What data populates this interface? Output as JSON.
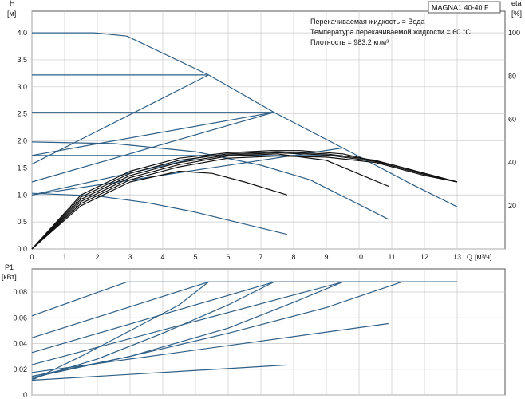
{
  "chart_data": [
    {
      "type": "line",
      "title": "MAGNA1 40-40 F",
      "annotations": [
        "Перекачиваемая жидкость = Вода",
        "Температура перекачиваемой жидкости = 60 °C",
        "Плотность = 983.2 кг/м³"
      ],
      "y_axis_title": "H",
      "y_axis_unit": "[м]",
      "y2_axis_title": "eta",
      "y2_axis_unit": "[%]",
      "x_axis_title": "Q",
      "x_axis_unit": "[м³/ч]",
      "xlim": [
        0,
        13
      ],
      "ylim": [
        0,
        4.4
      ],
      "y2lim": [
        0,
        110
      ],
      "x_ticks": [
        "0",
        "1",
        "2",
        "3",
        "4",
        "5",
        "6",
        "7",
        "8",
        "9",
        "10",
        "11",
        "12",
        "13"
      ],
      "y_ticks": [
        "0.0",
        "0.5",
        "1.0",
        "1.5",
        "2.0",
        "2.5",
        "3.0",
        "3.5",
        "4.0"
      ],
      "y2_ticks": [
        "20",
        "40",
        "60",
        "80",
        "100"
      ],
      "grid": true,
      "head_curves": [
        {
          "x": [
            0,
            1.9,
            2.9,
            5.4,
            7.4,
            9.5,
            11.6,
            13.0
          ],
          "y": [
            4.0,
            4.0,
            3.94,
            3.22,
            2.53,
            1.87,
            1.2,
            0.78
          ]
        },
        {
          "x": [
            0,
            5.4
          ],
          "y": [
            3.22,
            3.22
          ]
        },
        {
          "x": [
            0,
            7.4
          ],
          "y": [
            2.53,
            2.53
          ]
        },
        {
          "x": [
            0,
            9.5
          ],
          "y": [
            1.73,
            1.73
          ]
        },
        {
          "x": [
            0,
            2.5,
            5.0,
            7.0,
            8.5,
            10.9
          ],
          "y": [
            1.98,
            1.95,
            1.8,
            1.55,
            1.28,
            0.55
          ]
        },
        {
          "x": [
            0,
            2.0,
            3.5,
            5.0,
            6.5,
            7.8
          ],
          "y": [
            1.03,
            0.98,
            0.86,
            0.68,
            0.46,
            0.27
          ]
        }
      ],
      "control_lines": [
        {
          "x": [
            0,
            5.4
          ],
          "y": [
            1.57,
            3.22
          ]
        },
        {
          "x": [
            0,
            7.4
          ],
          "y": [
            1.24,
            2.53
          ]
        },
        {
          "x": [
            0,
            9.5
          ],
          "y": [
            1.0,
            1.87
          ]
        },
        {
          "x": [
            0,
            7.4
          ],
          "y": [
            1.73,
            2.53
          ]
        },
        {
          "x": [
            0,
            5.4
          ],
          "y": [
            1.0,
            1.73
          ]
        }
      ],
      "efficiency_curves": [
        {
          "x": [
            0,
            1.5,
            3.0,
            4.5,
            6.0,
            7.3,
            8.2,
            9.5,
            11.0,
            13.0
          ],
          "y": [
            0,
            25,
            36,
            42,
            44.5,
            45.5,
            45.5,
            44,
            39,
            31
          ]
        },
        {
          "x": [
            0,
            1.5,
            3.0,
            4.5,
            6.0,
            7.5,
            9.0,
            10.5,
            12.0,
            13.0
          ],
          "y": [
            0,
            24,
            35,
            41,
            44,
            45,
            44,
            41,
            35,
            31
          ]
        },
        {
          "x": [
            0,
            1.5,
            3.0,
            4.5,
            6.0,
            7.5,
            9.0,
            10.9
          ],
          "y": [
            0,
            22,
            33,
            39,
            43,
            44,
            41,
            29
          ]
        },
        {
          "x": [
            0,
            1.5,
            3.0,
            4.5,
            5.5,
            6.5,
            7.8
          ],
          "y": [
            0,
            20,
            31,
            36,
            35,
            31,
            25
          ]
        },
        {
          "x": [
            0,
            1.5,
            3.0,
            4.5,
            6.0,
            7.5,
            9.0,
            10.5,
            12.0,
            13.0
          ],
          "y": [
            0,
            23,
            34,
            40,
            43.5,
            44.5,
            43.5,
            40.5,
            34.5,
            31
          ]
        },
        {
          "x": [
            0,
            1.5,
            3.0,
            4.5,
            6.0,
            7.5,
            9.0,
            10.5,
            12.0,
            13.0
          ],
          "y": [
            0,
            21,
            32,
            38,
            42,
            43,
            42.5,
            40,
            34,
            31
          ]
        }
      ]
    },
    {
      "type": "line",
      "y_axis_title": "P1",
      "y_axis_unit": "[кВт]",
      "xlim": [
        0,
        13
      ],
      "ylim": [
        0,
        0.098
      ],
      "y_ticks": [
        "0",
        "0.02",
        "0.04",
        "0.06",
        "0.08"
      ],
      "grid": true,
      "power_curves": [
        {
          "x": [
            0,
            2.9,
            13.0
          ],
          "y": [
            0.0615,
            0.0878,
            0.0878
          ]
        },
        {
          "x": [
            0,
            5.4,
            13.0
          ],
          "y": [
            0.0445,
            0.0878,
            0.0878
          ]
        },
        {
          "x": [
            0,
            7.4,
            13.0
          ],
          "y": [
            0.033,
            0.0878,
            0.0878
          ]
        },
        {
          "x": [
            0,
            9.5,
            13.0
          ],
          "y": [
            0.0235,
            0.0878,
            0.0878
          ]
        },
        {
          "x": [
            0,
            10.9
          ],
          "y": [
            0.0175,
            0.0555
          ]
        },
        {
          "x": [
            0,
            7.8
          ],
          "y": [
            0.0115,
            0.0233
          ]
        },
        {
          "x": [
            0,
            1.5,
            3.0,
            4.5,
            5.4
          ],
          "y": [
            0.0115,
            0.03,
            0.05,
            0.07,
            0.0878
          ]
        },
        {
          "x": [
            0,
            2.0,
            4.0,
            6.0,
            7.4
          ],
          "y": [
            0.0125,
            0.028,
            0.048,
            0.07,
            0.0878
          ]
        },
        {
          "x": [
            0,
            3.0,
            6.0,
            8.0,
            9.5
          ],
          "y": [
            0.0135,
            0.03,
            0.052,
            0.072,
            0.0878
          ]
        },
        {
          "x": [
            0,
            3.0,
            6.0,
            9.0,
            11.3
          ],
          "y": [
            0.0145,
            0.03,
            0.048,
            0.068,
            0.0878
          ]
        }
      ]
    }
  ]
}
